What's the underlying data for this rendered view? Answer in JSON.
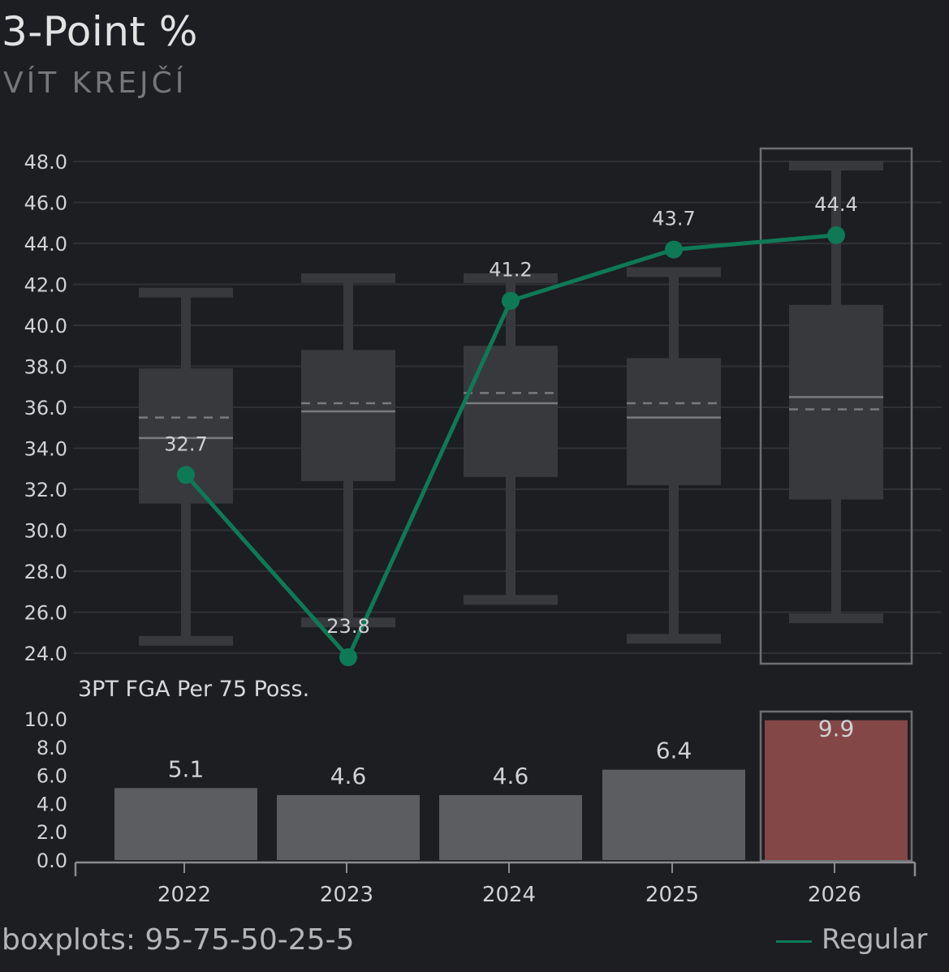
{
  "header": {
    "title": "3-Point %",
    "subtitle": "VÍT KREJČÍ"
  },
  "footer": {
    "note": "boxplots: 95-75-50-25-5",
    "legend_label": "Regular"
  },
  "colors": {
    "background": "#1d1e21",
    "grid": "#303135",
    "box": "#38393d",
    "box_line": "#7a7b7f",
    "line": "#0e7a55",
    "point": "#0e7a55",
    "bar": "#5c5d61",
    "bar_highlight": "#844747",
    "highlight_frame": "#6e6f73",
    "axis_text": "#d0d1d3",
    "label_text": "#d0d1d3"
  },
  "chart_data": [
    {
      "type": "box-line",
      "title": "3-Point %",
      "categories": [
        "2022",
        "2023",
        "2024",
        "2025",
        "2026"
      ],
      "ylim": [
        24.0,
        48.0
      ],
      "yticks": [
        "24.0",
        "26.0",
        "28.0",
        "30.0",
        "32.0",
        "34.0",
        "36.0",
        "38.0",
        "40.0",
        "42.0",
        "44.0",
        "46.0",
        "48.0"
      ],
      "grid": true,
      "highlight_category": "2026",
      "boxplots": [
        {
          "p5": 24.6,
          "p25": 31.3,
          "p50": 34.5,
          "mean": 35.5,
          "p75": 37.9,
          "p95": 41.6
        },
        {
          "p5": 25.5,
          "p25": 32.4,
          "p50": 35.8,
          "mean": 36.2,
          "p75": 38.8,
          "p95": 42.3
        },
        {
          "p5": 26.6,
          "p25": 32.6,
          "p50": 36.2,
          "mean": 36.7,
          "p75": 39.0,
          "p95": 42.3
        },
        {
          "p5": 24.7,
          "p25": 32.2,
          "p50": 35.5,
          "mean": 36.2,
          "p75": 38.4,
          "p95": 42.6
        },
        {
          "p5": 25.7,
          "p25": 31.5,
          "p50": 36.5,
          "mean": 35.9,
          "p75": 41.0,
          "p95": 47.8
        }
      ],
      "series": [
        {
          "name": "Regular",
          "values": [
            32.7,
            23.8,
            41.2,
            43.7,
            44.4
          ],
          "labels": [
            "32.7",
            "23.8",
            "41.2",
            "43.7",
            "44.4"
          ]
        }
      ]
    },
    {
      "type": "bar",
      "title": "3PT FGA Per 75 Poss.",
      "categories": [
        "2022",
        "2023",
        "2024",
        "2025",
        "2026"
      ],
      "ylim": [
        0.0,
        10.0
      ],
      "yticks": [
        "0.0",
        "2.0",
        "4.0",
        "6.0",
        "8.0",
        "10.0"
      ],
      "highlight_category": "2026",
      "values": [
        5.1,
        4.6,
        4.6,
        6.4,
        9.9
      ],
      "labels": [
        "5.1",
        "4.6",
        "4.6",
        "6.4",
        "9.9"
      ]
    }
  ]
}
